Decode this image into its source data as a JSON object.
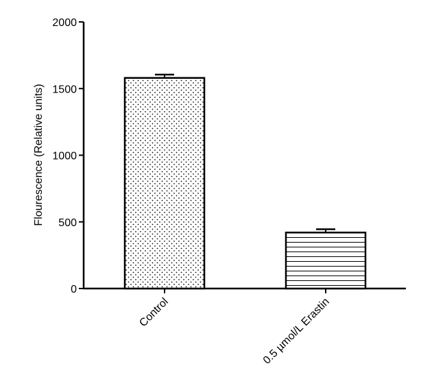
{
  "chart_data": {
    "type": "bar",
    "title": "",
    "xlabel": "",
    "ylabel": "Flourescence (Relative units)",
    "ylim": [
      0,
      2000
    ],
    "yticks": [
      0,
      500,
      1000,
      1500,
      2000
    ],
    "yticks_labels": [
      "0",
      "500",
      "1000",
      "1500",
      "2000"
    ],
    "grid": false,
    "legend": "none",
    "categories": [
      "Control",
      "0.5 µmol/L Erastin"
    ],
    "values": [
      1580,
      420
    ],
    "errors": [
      25,
      25
    ],
    "patterns": [
      "dots",
      "horizontal-lines"
    ],
    "colors": {
      "bar_edge": "#000000",
      "pattern": "#000000",
      "background": "#ffffff"
    }
  }
}
